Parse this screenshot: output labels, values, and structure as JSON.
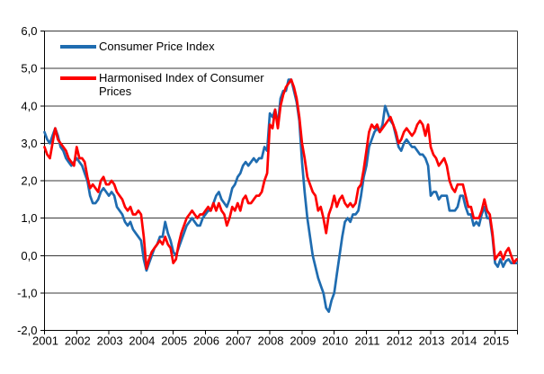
{
  "chart_data": {
    "type": "line",
    "title": "",
    "frequency": "monthly",
    "x_start": "2001-01",
    "x_end": "2015-09",
    "x_tick_labels": [
      "2001",
      "2002",
      "2003",
      "2004",
      "2005",
      "2006",
      "2007",
      "2008",
      "2009",
      "2010",
      "2011",
      "2012",
      "2013",
      "2014",
      "2015"
    ],
    "y_tick_labels": [
      "6,0",
      "5,0",
      "4,0",
      "3,0",
      "2,0",
      "1,0",
      "0,0",
      "-1,0",
      "-2,0"
    ],
    "ylim": [
      -2,
      6
    ],
    "y_step": 1,
    "grid": "horizontal",
    "legend_position": "top-left-inside",
    "axis_color": "#000000",
    "grid_color": "#3a3a3a",
    "series": [
      {
        "name": "Consumer Price Index",
        "color": "#1f6cb0",
        "values": [
          3.3,
          3.1,
          3.0,
          3.2,
          3.4,
          3.2,
          2.9,
          2.8,
          2.6,
          2.5,
          2.4,
          2.5,
          2.6,
          2.5,
          2.4,
          2.2,
          2.0,
          1.6,
          1.4,
          1.4,
          1.5,
          1.7,
          1.8,
          1.7,
          1.6,
          1.7,
          1.6,
          1.3,
          1.2,
          1.1,
          0.9,
          0.8,
          0.9,
          0.7,
          0.6,
          0.5,
          0.4,
          -0.1,
          -0.4,
          -0.2,
          0.0,
          0.2,
          0.3,
          0.5,
          0.5,
          0.9,
          0.6,
          0.4,
          0.1,
          0.0,
          0.2,
          0.4,
          0.6,
          0.8,
          0.9,
          1.0,
          0.9,
          0.8,
          0.8,
          1.0,
          1.1,
          1.2,
          1.2,
          1.4,
          1.6,
          1.7,
          1.5,
          1.4,
          1.3,
          1.5,
          1.8,
          1.9,
          2.1,
          2.2,
          2.4,
          2.5,
          2.4,
          2.5,
          2.6,
          2.5,
          2.6,
          2.6,
          2.9,
          2.8,
          3.8,
          3.7,
          3.9,
          3.5,
          4.2,
          4.4,
          4.4,
          4.7,
          4.7,
          4.4,
          4.1,
          3.6,
          2.5,
          1.7,
          1.0,
          0.5,
          0.0,
          -0.3,
          -0.6,
          -0.8,
          -1.0,
          -1.4,
          -1.5,
          -1.2,
          -1.0,
          -0.5,
          0.0,
          0.5,
          0.9,
          1.0,
          0.9,
          1.1,
          1.1,
          1.2,
          1.6,
          2.1,
          2.4,
          2.9,
          3.1,
          3.3,
          3.4,
          3.3,
          3.5,
          4.0,
          3.8,
          3.6,
          3.5,
          3.2,
          2.9,
          2.8,
          3.0,
          3.1,
          3.0,
          2.9,
          2.9,
          2.8,
          2.7,
          2.7,
          2.6,
          2.4,
          1.6,
          1.7,
          1.7,
          1.5,
          1.6,
          1.6,
          1.6,
          1.2,
          1.2,
          1.2,
          1.3,
          1.6,
          1.6,
          1.3,
          1.1,
          1.1,
          0.8,
          0.9,
          0.8,
          1.1,
          1.3,
          1.0,
          1.0,
          0.5,
          -0.2,
          -0.3,
          -0.1,
          -0.3,
          -0.15,
          -0.1,
          -0.2,
          -0.2,
          -0.2
        ]
      },
      {
        "name": "Harmonised Index of Consumer Prices",
        "color": "#fe0000",
        "values": [
          2.9,
          2.7,
          2.6,
          3.0,
          3.4,
          3.1,
          3.0,
          2.9,
          2.8,
          2.6,
          2.5,
          2.4,
          2.9,
          2.6,
          2.6,
          2.5,
          2.1,
          1.8,
          1.9,
          1.8,
          1.7,
          2.0,
          2.1,
          1.9,
          1.9,
          2.0,
          1.9,
          1.7,
          1.6,
          1.5,
          1.3,
          1.2,
          1.3,
          1.1,
          1.1,
          1.2,
          1.1,
          0.5,
          -0.35,
          -0.1,
          0.1,
          0.2,
          0.3,
          0.4,
          0.3,
          0.5,
          0.3,
          0.2,
          -0.2,
          -0.1,
          0.3,
          0.6,
          0.8,
          1.0,
          1.1,
          1.2,
          1.1,
          1.0,
          1.1,
          1.1,
          1.2,
          1.3,
          1.2,
          1.4,
          1.2,
          1.4,
          1.2,
          1.1,
          0.8,
          1.0,
          1.3,
          1.2,
          1.4,
          1.2,
          1.5,
          1.6,
          1.4,
          1.4,
          1.5,
          1.6,
          1.6,
          1.7,
          2.0,
          2.2,
          3.5,
          3.4,
          3.9,
          3.4,
          4.0,
          4.3,
          4.5,
          4.6,
          4.7,
          4.5,
          4.2,
          3.7,
          3.0,
          2.6,
          2.1,
          1.9,
          1.7,
          1.6,
          1.2,
          1.3,
          1.0,
          0.6,
          1.1,
          1.3,
          1.6,
          1.3,
          1.5,
          1.6,
          1.4,
          1.3,
          1.4,
          1.3,
          1.4,
          1.8,
          1.9,
          2.3,
          2.8,
          3.3,
          3.5,
          3.4,
          3.5,
          3.3,
          3.4,
          3.5,
          3.6,
          3.7,
          3.5,
          3.3,
          3.0,
          3.1,
          3.3,
          3.4,
          3.3,
          3.2,
          3.3,
          3.5,
          3.6,
          3.5,
          3.2,
          3.5,
          2.9,
          2.7,
          2.6,
          2.4,
          2.5,
          2.6,
          2.4,
          2.0,
          1.8,
          1.7,
          1.9,
          1.9,
          1.9,
          1.6,
          1.3,
          1.3,
          1.0,
          1.0,
          1.0,
          1.2,
          1.5,
          1.2,
          1.1,
          0.6,
          -0.1,
          0.0,
          0.1,
          -0.1,
          0.1,
          0.2,
          0.0,
          -0.2,
          -0.1
        ]
      }
    ]
  },
  "legend": {
    "cpi_label": "Consumer Price Index",
    "hicp_label": "Harmonised Index of Consumer Prices"
  }
}
